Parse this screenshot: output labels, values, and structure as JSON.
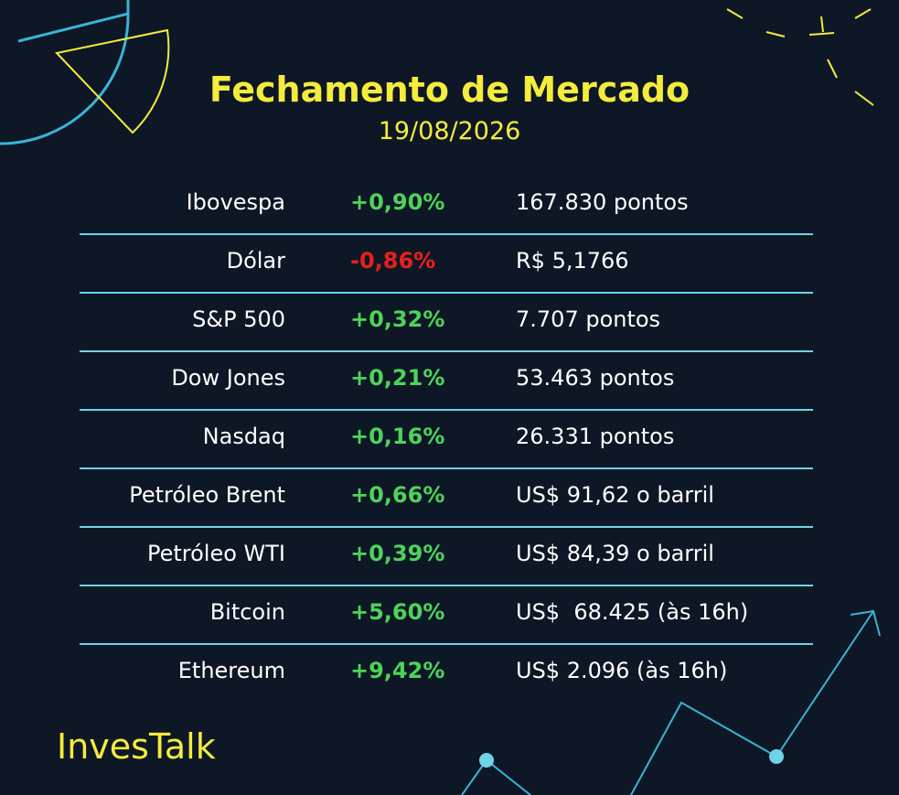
{
  "header": {
    "title": "Fechamento de Mercado",
    "date": "19/08/2026"
  },
  "table": {
    "rows": [
      [
        "Ibovespa",
        "+0,90%",
        "167.830 pontos"
      ],
      [
        "Dólar",
        "-0,86%",
        "R$ 5,1766"
      ],
      [
        "S&P 500",
        "+0,32%",
        "7.707 pontos"
      ],
      [
        "Dow Jones",
        "+0,21%",
        "53.463 pontos"
      ],
      [
        "Nasdaq",
        "+0,16%",
        "26.331 pontos"
      ],
      [
        "Petróleo Brent",
        "+0,66%",
        "US$ 91,62 o barril"
      ],
      [
        "Petróleo WTI",
        "+0,39%",
        "US$ 84,39 o barril"
      ],
      [
        "Bitcoin",
        "+5,60%",
        "US$  68.425 (às 16h)"
      ],
      [
        "Ethereum",
        "+9,42%",
        "US$ 2.096 (às 16h)"
      ]
    ]
  },
  "footer": {
    "brand": "InvesTalk"
  }
}
